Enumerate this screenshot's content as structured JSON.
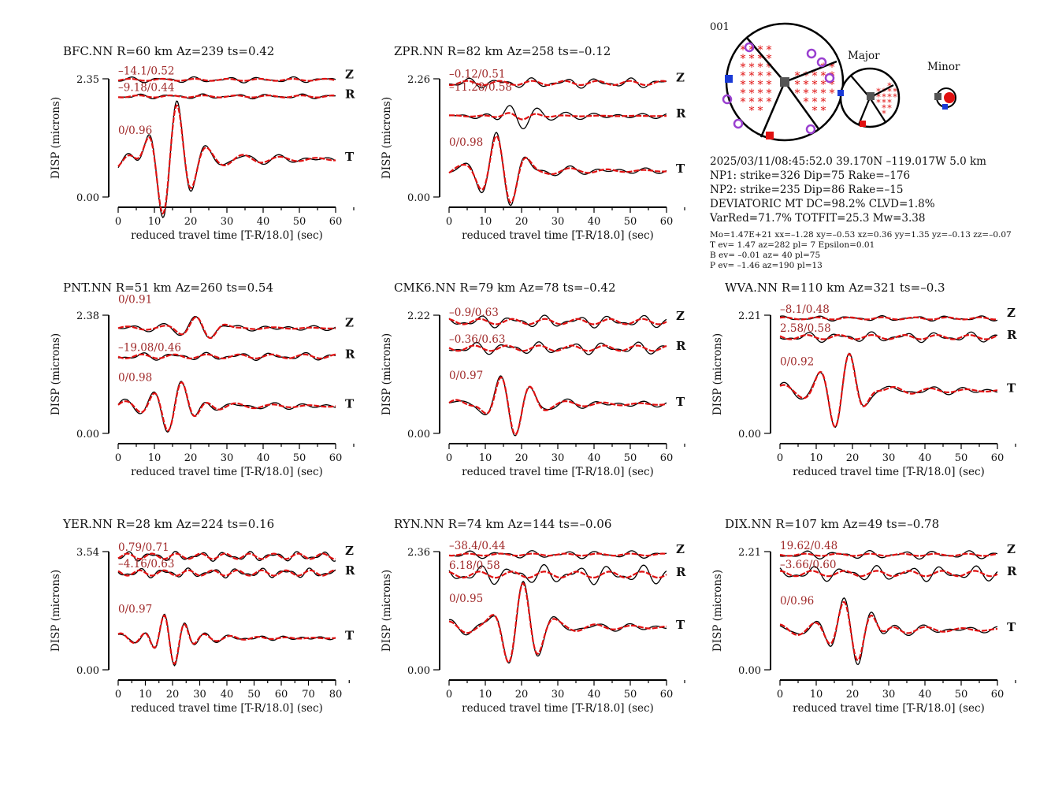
{
  "event_id": "001",
  "beachballs": {
    "major_label": "Major",
    "minor_label": "Minor",
    "colors": {
      "t_axis": "#e01010",
      "p_axis": "#1a3ad6",
      "b_axis": "#555555",
      "polarity": "#9a40d0",
      "compression": "#e01010"
    }
  },
  "event_info": {
    "line1": "2025/03/11/08:45:52.0 39.170N –119.017W 5.0 km",
    "line2": "NP1: strike=326 Dip=75 Rake=–176",
    "line3": "NP2: strike=235 Dip=86 Rake=–15",
    "line4": "DEVIATORIC MT DC=98.2% CLVD=1.8%",
    "line5": "VarRed=71.7% TOTFIT=25.3 Mw=3.38",
    "small1": "Mo=1.47E+21 xx=–1.28 xy=–0.53 xz=0.36 yy=1.35 yz=–0.13 zz=–0.07",
    "small2": "T ev=  1.47 az=282 pl= 7 Epsilon=0.01",
    "small3": "B ev= –0.01 az= 40 pl=75",
    "small4": "P ev= –1.46 az=190 pl=13"
  },
  "chart_data": [
    {
      "type": "line",
      "station": "BFC.NN",
      "title": "BFC.NN R=60 km Az=239 ts=0.42",
      "xlabel": "reduced travel time [T-R/18.0] (sec)",
      "ylabel": "DISP (microns)",
      "xlim": [
        0,
        60
      ],
      "xticks": [
        0,
        10,
        20,
        30,
        40,
        50,
        60
      ],
      "ylim": [
        0.0,
        2.35
      ],
      "ytick_labels": [
        "2.35",
        "0.00"
      ],
      "series": [
        {
          "component": "Z",
          "fit_label": "–14.1/0.52",
          "baseline": 2.33,
          "amp": 0.06,
          "syn_amp": 0.02
        },
        {
          "component": "R",
          "fit_label": "–9.18/0.44",
          "baseline": 2.0,
          "amp": 0.05,
          "syn_amp": 0.02
        },
        {
          "component": "T",
          "fit_label": "0/0.96",
          "baseline": 0.75,
          "amp": 1.25,
          "syn_amp": 1.2
        }
      ]
    },
    {
      "type": "line",
      "station": "ZPR.NN",
      "title": "ZPR.NN R=82 km Az=258 ts=–0.12",
      "xlabel": "reduced travel time [T-R/18.0] (sec)",
      "ylabel": "DISP (microns)",
      "xlim": [
        0,
        60
      ],
      "xticks": [
        0,
        10,
        20,
        30,
        40,
        50,
        60
      ],
      "ylim": [
        0.0,
        2.26
      ],
      "ytick_labels": [
        "2.26",
        "0.00"
      ],
      "series": [
        {
          "component": "Z",
          "fit_label": "–0.12/0.51",
          "baseline": 2.18,
          "amp": 0.1,
          "syn_amp": 0.04
        },
        {
          "component": "R",
          "fit_label": "–11.28/0.58",
          "baseline": 1.55,
          "amp": 0.3,
          "syn_amp": 0.08
        },
        {
          "component": "T",
          "fit_label": "0/0.98",
          "baseline": 0.5,
          "amp": 0.65,
          "syn_amp": 0.62
        }
      ]
    },
    {
      "type": "line",
      "station": "PNT.NN",
      "title": "PNT.NN R=51 km Az=260 ts=0.54",
      "xlabel": "reduced travel time [T-R/18.0] (sec)",
      "ylabel": "DISP (microns)",
      "xlim": [
        0,
        60
      ],
      "xticks": [
        0,
        10,
        20,
        30,
        40,
        50,
        60
      ],
      "ylim": [
        0.0,
        2.38
      ],
      "ytick_labels": [
        "2.38",
        "0.00"
      ],
      "series": [
        {
          "component": "Z",
          "fit_label": "0/0.91",
          "baseline": 2.12,
          "amp": 0.25,
          "syn_amp": 0.22
        },
        {
          "component": "R",
          "fit_label": "–19.08/0.46",
          "baseline": 1.55,
          "amp": 0.08,
          "syn_amp": 0.04
        },
        {
          "component": "T",
          "fit_label": "0/0.98",
          "baseline": 0.55,
          "amp": 0.65,
          "syn_amp": 0.62
        }
      ]
    },
    {
      "type": "line",
      "station": "CMK6.NN",
      "title": "CMK6.NN R=79 km Az=78 ts=–0.42",
      "xlabel": "reduced travel time [T-R/18.0] (sec)",
      "ylabel": "DISP (microns)",
      "xlim": [
        0,
        60
      ],
      "xticks": [
        0,
        10,
        20,
        30,
        40,
        50,
        60
      ],
      "ylim": [
        0.0,
        2.22
      ],
      "ytick_labels": [
        "2.22",
        "0.00"
      ],
      "series": [
        {
          "component": "Z",
          "fit_label": "–0.9/0.63",
          "baseline": 2.1,
          "amp": 0.12,
          "syn_amp": 0.05
        },
        {
          "component": "R",
          "fit_label": "–0.36/0.63",
          "baseline": 1.6,
          "amp": 0.12,
          "syn_amp": 0.05
        },
        {
          "component": "T",
          "fit_label": "0/0.97",
          "baseline": 0.55,
          "amp": 0.6,
          "syn_amp": 0.55
        }
      ]
    },
    {
      "type": "line",
      "station": "WVA.NN",
      "title": "WVA.NN R=110 km Az=321 ts=–0.3",
      "xlabel": "reduced travel time [T-R/18.0] (sec)",
      "ylabel": "DISP (microns)",
      "xlim": [
        0,
        60
      ],
      "xticks": [
        0,
        10,
        20,
        30,
        40,
        50,
        60
      ],
      "ylim": [
        0.0,
        2.21
      ],
      "ytick_labels": [
        "2.21",
        "0.00"
      ],
      "series": [
        {
          "component": "Z",
          "fit_label": "–8.1/0.48",
          "baseline": 2.15,
          "amp": 0.05,
          "syn_amp": 0.02
        },
        {
          "component": "R",
          "fit_label": "2.58/0.58",
          "baseline": 1.8,
          "amp": 0.1,
          "syn_amp": 0.04
        },
        {
          "component": "T",
          "fit_label": "0/0.92",
          "baseline": 0.8,
          "amp": 0.75,
          "syn_amp": 0.7
        }
      ]
    },
    {
      "type": "line",
      "station": "YER.NN",
      "title": "YER.NN R=28 km Az=224 ts=0.16",
      "xlabel": "reduced travel time [T-R/18.0] (sec)",
      "ylabel": "DISP (microns)",
      "xlim": [
        0,
        80
      ],
      "xticks": [
        0,
        10,
        20,
        30,
        40,
        50,
        60,
        70,
        80
      ],
      "ylim": [
        0.0,
        3.54
      ],
      "ytick_labels": [
        "3.54",
        "0.00"
      ],
      "series": [
        {
          "component": "Z",
          "fit_label": "0.79/0.71",
          "baseline": 3.4,
          "amp": 0.15,
          "syn_amp": 0.08
        },
        {
          "component": "R",
          "fit_label": "–4.16/0.63",
          "baseline": 2.9,
          "amp": 0.15,
          "syn_amp": 0.08
        },
        {
          "component": "T",
          "fit_label": "0/0.97",
          "baseline": 0.95,
          "amp": 1.0,
          "syn_amp": 0.95
        }
      ]
    },
    {
      "type": "line",
      "station": "RYN.NN",
      "title": "RYN.NN R=74 km Az=144 ts=–0.06",
      "xlabel": "reduced travel time [T-R/18.0] (sec)",
      "ylabel": "DISP (microns)",
      "xlim": [
        0,
        60
      ],
      "xticks": [
        0,
        10,
        20,
        30,
        40,
        50,
        60
      ],
      "ylim": [
        0.0,
        2.36
      ],
      "ytick_labels": [
        "2.36",
        "0.00"
      ],
      "series": [
        {
          "component": "Z",
          "fit_label": "–38.4/0.44",
          "baseline": 2.3,
          "amp": 0.08,
          "syn_amp": 0.02
        },
        {
          "component": "R",
          "fit_label": "6.18/0.58",
          "baseline": 1.9,
          "amp": 0.2,
          "syn_amp": 0.06
        },
        {
          "component": "T",
          "fit_label": "0/0.95",
          "baseline": 0.85,
          "amp": 0.8,
          "syn_amp": 0.78
        }
      ]
    },
    {
      "type": "line",
      "station": "DIX.NN",
      "title": "DIX.NN R=107 km Az=49 ts=–0.78",
      "xlabel": "reduced travel time [T-R/18.0] (sec)",
      "ylabel": "DISP (microns)",
      "xlim": [
        0,
        60
      ],
      "xticks": [
        0,
        10,
        20,
        30,
        40,
        50,
        60
      ],
      "ylim": [
        0.0,
        2.21
      ],
      "ytick_labels": [
        "2.21",
        "0.00"
      ],
      "series": [
        {
          "component": "Z",
          "fit_label": "19.62/0.48",
          "baseline": 2.15,
          "amp": 0.08,
          "syn_amp": 0.02
        },
        {
          "component": "R",
          "fit_label": "–3.66/0.60",
          "baseline": 1.8,
          "amp": 0.15,
          "syn_amp": 0.05
        },
        {
          "component": "T",
          "fit_label": "0/0.96",
          "baseline": 0.75,
          "amp": 0.7,
          "syn_amp": 0.65
        }
      ]
    }
  ]
}
